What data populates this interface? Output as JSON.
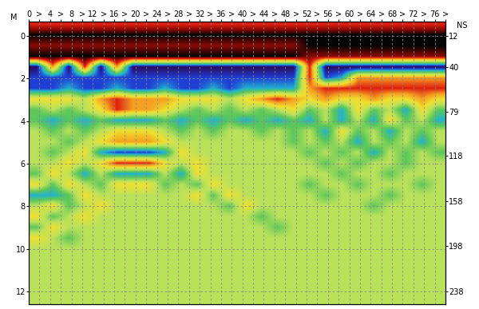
{
  "chart_data": {
    "type": "heatmap",
    "ylabel": "M",
    "y2label": "NS",
    "x": [
      1.5,
      4.5,
      7.5,
      10.5,
      13.5,
      16.5,
      19.5,
      22.5,
      25.5,
      28.5,
      31.5,
      34.5,
      37.5,
      40.5,
      43.5,
      46.5,
      49.5,
      52.5,
      55.5,
      58.5,
      61.5,
      64.5,
      67.5,
      70.5,
      73.5,
      76.5
    ],
    "y": [
      -0.5,
      0,
      0.5,
      1,
      1.5,
      2,
      2.5,
      3,
      3.5,
      4,
      4.5,
      5,
      5.5,
      6,
      6.5,
      7,
      7.5,
      8,
      8.5,
      9,
      9.5,
      10,
      10.5,
      11,
      11.5,
      12,
      12.5
    ],
    "cells": [
      [
        7,
        7,
        7,
        7,
        7,
        7,
        7,
        7,
        7,
        7,
        7,
        7,
        7,
        7,
        7,
        7,
        7,
        7,
        7,
        7,
        7,
        7,
        7,
        7,
        7,
        7
      ],
      [
        9,
        9,
        9,
        9,
        9,
        9,
        9,
        9,
        9,
        9,
        9,
        9,
        9,
        9,
        9,
        9,
        9,
        9,
        9,
        9,
        9,
        9,
        9,
        9,
        9,
        9
      ],
      [
        8,
        8,
        8,
        8,
        8,
        8,
        8,
        8,
        8,
        8,
        8,
        8,
        8,
        8,
        8,
        8,
        8,
        9,
        9,
        9,
        9,
        9,
        9,
        9,
        9,
        9
      ],
      [
        9,
        9,
        9,
        9,
        9,
        9,
        9,
        9,
        9,
        9,
        9,
        9,
        9,
        9,
        9,
        9,
        9,
        8,
        8,
        8,
        8,
        8,
        8,
        8,
        8,
        8
      ],
      [
        0,
        6,
        0,
        7,
        0,
        6,
        0,
        0,
        0,
        0,
        0,
        0,
        0,
        0,
        0,
        0,
        0,
        7,
        0,
        0,
        0,
        0,
        0,
        0,
        0,
        0
      ],
      [
        1,
        1,
        1,
        1,
        1,
        1,
        1,
        1,
        1,
        1,
        1,
        1,
        1,
        1,
        1,
        1,
        1,
        7,
        1,
        2,
        6,
        6,
        6,
        6,
        6,
        6
      ],
      [
        1,
        1,
        2,
        1,
        1,
        2,
        1,
        1,
        2,
        1,
        1,
        2,
        1,
        2,
        2,
        2,
        2,
        6,
        7,
        7,
        7,
        7,
        7,
        7,
        7,
        7
      ],
      [
        5,
        5,
        5,
        4,
        6,
        7,
        6,
        6,
        6,
        5,
        5,
        5,
        4,
        5,
        6,
        7,
        6,
        5,
        6,
        5,
        5,
        6,
        5,
        5,
        6,
        5
      ],
      [
        3,
        4,
        3,
        4,
        5,
        7,
        6,
        6,
        5,
        4,
        3,
        4,
        3,
        4,
        3,
        4,
        5,
        3,
        4,
        2,
        5,
        3,
        4,
        2,
        5,
        3
      ],
      [
        3,
        2,
        3,
        2,
        3,
        2,
        2,
        2,
        3,
        2,
        3,
        2,
        3,
        2,
        3,
        2,
        3,
        2,
        4,
        2,
        4,
        2,
        5,
        3,
        4,
        2
      ],
      [
        4,
        3,
        4,
        3,
        4,
        5,
        5,
        5,
        4,
        3,
        4,
        3,
        4,
        4,
        3,
        4,
        3,
        4,
        2,
        5,
        3,
        4,
        2,
        4,
        3,
        4
      ],
      [
        4,
        4,
        3,
        4,
        5,
        6,
        6,
        6,
        5,
        4,
        4,
        4,
        4,
        4,
        4,
        4,
        3,
        4,
        3,
        4,
        2,
        4,
        3,
        4,
        2,
        4
      ],
      [
        4,
        3,
        4,
        5,
        2,
        1,
        1,
        1,
        2,
        5,
        4,
        4,
        4,
        4,
        4,
        4,
        4,
        3,
        4,
        3,
        4,
        2,
        4,
        3,
        4,
        3
      ],
      [
        4,
        4,
        5,
        4,
        5,
        7,
        7,
        7,
        5,
        4,
        5,
        4,
        4,
        4,
        4,
        4,
        4,
        4,
        3,
        4,
        3,
        4,
        4,
        3,
        4,
        4
      ],
      [
        3,
        5,
        4,
        2,
        4,
        2,
        2,
        2,
        4,
        2,
        5,
        4,
        4,
        4,
        4,
        4,
        4,
        4,
        4,
        3,
        4,
        4,
        3,
        4,
        4,
        4
      ],
      [
        5,
        3,
        5,
        4,
        3,
        5,
        5,
        5,
        3,
        4,
        3,
        5,
        4,
        4,
        4,
        4,
        4,
        3,
        4,
        4,
        3,
        4,
        4,
        4,
        3,
        4
      ],
      [
        2,
        2,
        3,
        5,
        4,
        4,
        4,
        4,
        4,
        4,
        5,
        3,
        5,
        4,
        4,
        4,
        4,
        4,
        3,
        4,
        4,
        4,
        3,
        4,
        4,
        4
      ],
      [
        4,
        5,
        3,
        4,
        5,
        4,
        4,
        4,
        4,
        4,
        4,
        4,
        3,
        5,
        4,
        4,
        4,
        4,
        4,
        4,
        4,
        3,
        4,
        4,
        4,
        4
      ],
      [
        5,
        3,
        4,
        5,
        4,
        4,
        4,
        4,
        4,
        4,
        4,
        4,
        4,
        4,
        3,
        4,
        4,
        4,
        4,
        4,
        4,
        4,
        4,
        4,
        4,
        4
      ],
      [
        3,
        5,
        4,
        4,
        4,
        4,
        4,
        4,
        4,
        4,
        4,
        4,
        4,
        4,
        4,
        3,
        4,
        4,
        4,
        4,
        4,
        4,
        4,
        4,
        4,
        4
      ],
      [
        5,
        4,
        3,
        4,
        4,
        4,
        4,
        4,
        4,
        4,
        4,
        4,
        4,
        4,
        4,
        4,
        4,
        4,
        4,
        4,
        4,
        4,
        4,
        4,
        4,
        4
      ],
      [
        4,
        4,
        4,
        4,
        4,
        4,
        4,
        4,
        4,
        4,
        4,
        4,
        4,
        4,
        4,
        4,
        4,
        4,
        4,
        4,
        4,
        4,
        4,
        4,
        4,
        4
      ],
      [
        4,
        4,
        4,
        4,
        4,
        4,
        4,
        4,
        4,
        4,
        4,
        4,
        4,
        4,
        4,
        4,
        4,
        4,
        4,
        4,
        4,
        4,
        4,
        4,
        4,
        4
      ],
      [
        4,
        4,
        4,
        4,
        4,
        4,
        4,
        4,
        4,
        4,
        4,
        4,
        4,
        4,
        4,
        4,
        4,
        4,
        4,
        4,
        4,
        4,
        4,
        4,
        4,
        4
      ],
      [
        4,
        4,
        4,
        4,
        4,
        4,
        4,
        4,
        4,
        4,
        4,
        4,
        4,
        4,
        4,
        4,
        4,
        4,
        4,
        4,
        4,
        4,
        4,
        4,
        4,
        4
      ],
      [
        4,
        4,
        4,
        4,
        4,
        4,
        4,
        4,
        4,
        4,
        4,
        4,
        4,
        4,
        4,
        4,
        4,
        4,
        4,
        4,
        4,
        4,
        4,
        4,
        4,
        4
      ],
      [
        4,
        4,
        4,
        4,
        4,
        4,
        4,
        4,
        4,
        4,
        4,
        4,
        4,
        4,
        4,
        4,
        4,
        4,
        4,
        4,
        4,
        4,
        4,
        4,
        4,
        4
      ]
    ],
    "colors": [
      "#2a0a5e",
      "#1f3fd6",
      "#20b4d0",
      "#5cc85a",
      "#bce25a",
      "#f0e030",
      "#f5a020",
      "#e02010",
      "#8b0a05",
      "#050505"
    ],
    "color_range": [
      0,
      9
    ],
    "xlim": [
      0,
      78
    ],
    "xticks": [
      0,
      {
        "value": 2,
        "label": ">"
      },
      4,
      {
        "value": 6,
        "label": ">"
      },
      8,
      {
        "value": 10,
        "label": ">"
      },
      12,
      {
        "value": 14,
        "label": ">"
      },
      16,
      {
        "value": 18,
        "label": ">"
      },
      20,
      {
        "value": 22,
        "label": ">"
      },
      24,
      {
        "value": 26,
        "label": ">"
      },
      28,
      {
        "value": 30,
        "label": ">"
      },
      32,
      {
        "value": 34,
        "label": ">"
      },
      36,
      {
        "value": 38,
        "label": ">"
      },
      40,
      {
        "value": 42,
        "label": ">"
      },
      44,
      {
        "value": 46,
        "label": ">"
      },
      48,
      {
        "value": 50,
        "label": ">"
      },
      52,
      {
        "value": 54,
        "label": ">"
      },
      56,
      {
        "value": 58,
        "label": ">"
      },
      60,
      {
        "value": 62,
        "label": ">"
      },
      64,
      {
        "value": 66,
        "label": ">"
      },
      68,
      {
        "value": 70,
        "label": ">"
      },
      72,
      {
        "value": 74,
        "label": ">"
      },
      76,
      {
        "value": 78,
        "label": ">"
      }
    ],
    "ylim": [
      12.6,
      -0.66
    ],
    "yticks": [
      0,
      2,
      4,
      6,
      8,
      10,
      12
    ],
    "y2lim": [
      249.3,
      -0.4
    ],
    "y2ticks": [
      12,
      40,
      79,
      118,
      158,
      198,
      238
    ],
    "grid": true
  }
}
